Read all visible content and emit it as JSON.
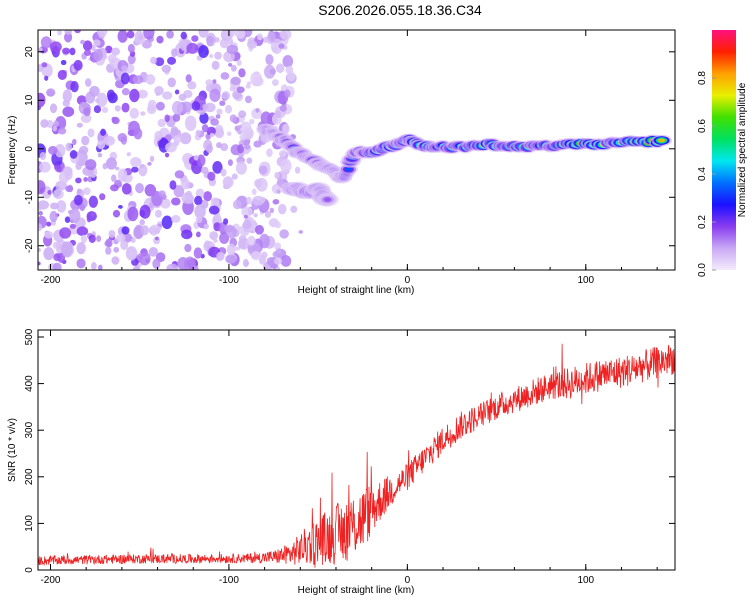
{
  "title": "S206.2026.055.18.36.C34",
  "chart_data": [
    {
      "type": "heatmap",
      "name": "spectrogram",
      "xlabel": "Height of straight line (km)",
      "ylabel": "Frequency (Hz)",
      "xlim": [
        -207,
        150
      ],
      "ylim": [
        -25,
        24.5
      ],
      "xticks": [
        -200,
        -100,
        0,
        100
      ],
      "xtick_labels": [
        "-200",
        "-100",
        "0",
        "100"
      ],
      "yticks": [
        -20,
        -10,
        0,
        10,
        20
      ],
      "ytick_labels": [
        "-20",
        "-10",
        "0",
        "10",
        "20"
      ],
      "colorbar": {
        "label": "Normalized spectral amplitude",
        "range": [
          0,
          1
        ],
        "ticks": [
          0.0,
          0.2,
          0.4,
          0.6,
          0.8
        ],
        "tick_labels": [
          "0.0",
          "0.2",
          "0.4",
          "0.6",
          "0.8"
        ],
        "colormap": [
          "#f4ecfc",
          "#c8a8f4",
          "#8a3cf0",
          "#1a10ff",
          "#0070ff",
          "#00e8f0",
          "#00e060",
          "#40e000",
          "#e8f000",
          "#ffa000",
          "#ff2000",
          "#ff1080"
        ]
      },
      "noise_region": {
        "x_range": [
          -207,
          -65
        ],
        "amplitude_range": [
          0.02,
          0.2
        ]
      },
      "ridge": {
        "x": [
          -80,
          -75,
          -70,
          -65,
          -60,
          -55,
          -50,
          -45,
          -40,
          -37,
          -34,
          -30,
          -25,
          -20,
          -15,
          -10,
          -5,
          0,
          3,
          8,
          15,
          25,
          35,
          45,
          55,
          65,
          75,
          85,
          95,
          105,
          115,
          125,
          135,
          145
        ],
        "freq": [
          4,
          3,
          2,
          0.5,
          -1,
          -2,
          -3,
          -4,
          -5,
          -6,
          -5,
          -1,
          -0.5,
          -1,
          0,
          0.5,
          1,
          2,
          1.5,
          0.5,
          0.5,
          0.3,
          0.5,
          1,
          0.5,
          0.5,
          0.5,
          0.8,
          1,
          1,
          1.2,
          1.5,
          1.5,
          1.5
        ],
        "amplitude": [
          0.3,
          0.25,
          0.28,
          0.3,
          0.25,
          0.3,
          0.3,
          0.28,
          0.25,
          0.3,
          0.35,
          0.4,
          0.45,
          0.7,
          0.6,
          0.85,
          0.5,
          0.7,
          0.6,
          0.8,
          0.5,
          0.55,
          0.5,
          0.7,
          0.55,
          0.6,
          0.5,
          0.55,
          0.8,
          0.9,
          0.5,
          0.8,
          0.9,
          0.85
        ]
      },
      "secondary_ridge": {
        "x": [
          -65,
          -60,
          -55,
          -50,
          -47,
          -44
        ],
        "freq": [
          -8,
          -8.5,
          -9,
          -8,
          -10,
          -11
        ],
        "amplitude": [
          0.25,
          0.3,
          0.35,
          0.3,
          0.25,
          0.2
        ]
      }
    },
    {
      "type": "line",
      "name": "snr",
      "xlabel": "Height of straight line (km)",
      "ylabel": "SNR (10 * v/v)",
      "xlim": [
        -207,
        150
      ],
      "ylim": [
        0,
        515
      ],
      "xticks": [
        -200,
        -100,
        0,
        100
      ],
      "xtick_labels": [
        "-200",
        "-100",
        "0",
        "100"
      ],
      "yticks": [
        0,
        100,
        200,
        300,
        400,
        500
      ],
      "ytick_labels": [
        "0",
        "100",
        "200",
        "300",
        "400",
        "500"
      ],
      "color": "#ee2222",
      "series": [
        {
          "name": "SNR",
          "x": [
            -207,
            -180,
            -150,
            -120,
            -90,
            -75,
            -65,
            -55,
            -45,
            -35,
            -25,
            -15,
            -5,
            0,
            10,
            20,
            30,
            40,
            50,
            60,
            70,
            80,
            90,
            100,
            110,
            120,
            130,
            140,
            150
          ],
          "mean": [
            20,
            22,
            24,
            24,
            25,
            28,
            35,
            55,
            70,
            85,
            110,
            150,
            185,
            200,
            240,
            280,
            310,
            330,
            350,
            365,
            380,
            395,
            400,
            410,
            420,
            425,
            435,
            445,
            455
          ],
          "noise_amplitude": [
            10,
            10,
            10,
            10,
            10,
            14,
            25,
            45,
            60,
            70,
            70,
            45,
            30,
            30,
            30,
            30,
            30,
            28,
            28,
            28,
            30,
            30,
            35,
            35,
            35,
            35,
            35,
            35,
            35
          ]
        }
      ]
    }
  ]
}
